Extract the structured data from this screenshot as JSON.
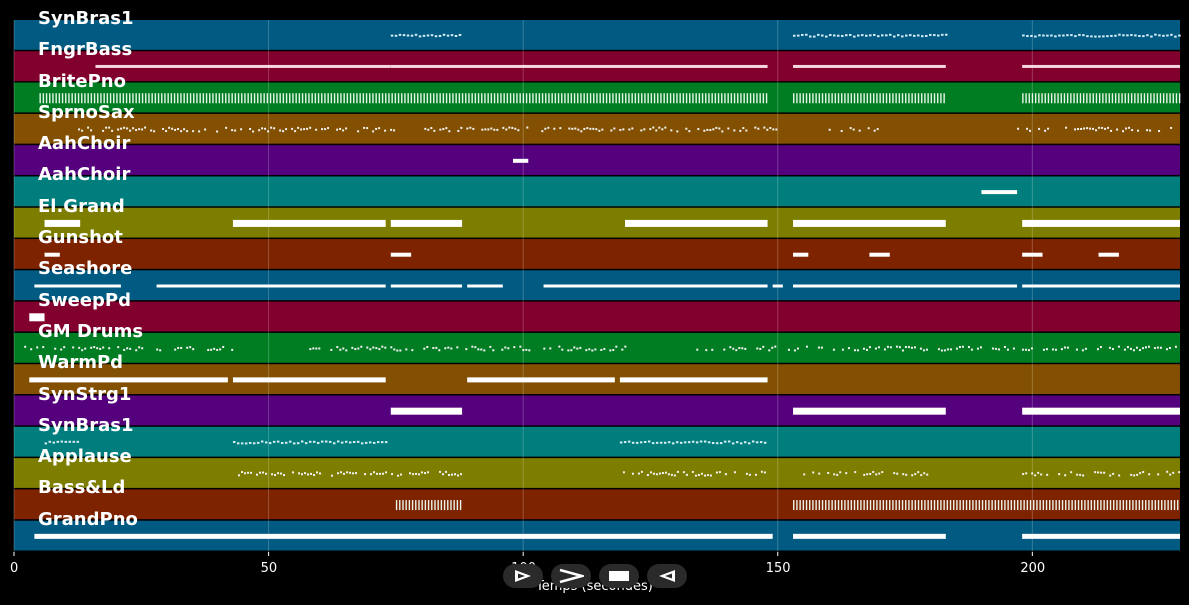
{
  "chart_data": {
    "type": "piano-roll",
    "xlabel": "Temps (secondes)",
    "xlim": [
      0,
      229
    ],
    "xticks": [
      0,
      50,
      100,
      150,
      200
    ],
    "grid": true,
    "tracks": [
      {
        "name": "SynBras1",
        "color": "#005a82",
        "segments": [
          [
            74,
            88
          ],
          [
            153,
            183
          ],
          [
            198,
            229
          ]
        ],
        "note_type": "sparse-thin"
      },
      {
        "name": "FngrBass",
        "color": "#82002d",
        "segments": [
          [
            16,
            74
          ],
          [
            74,
            148
          ],
          [
            153,
            183
          ],
          [
            198,
            229
          ]
        ],
        "note_type": "dense-row"
      },
      {
        "name": "BritePno",
        "color": "#007d23",
        "segments": [
          [
            5,
            148
          ],
          [
            153,
            183
          ],
          [
            198,
            229
          ]
        ],
        "note_type": "vertical-ticks"
      },
      {
        "name": "SprnoSax",
        "color": "#825000",
        "segments": [
          [
            12,
            75
          ],
          [
            80,
            150
          ],
          [
            160,
            170
          ],
          [
            197,
            229
          ]
        ],
        "note_type": "sparse-dots"
      },
      {
        "name": "AahChoir",
        "color": "#55007d",
        "segments": [
          [
            98,
            101
          ]
        ],
        "note_type": "block"
      },
      {
        "name": "AahChoir",
        "color": "#007d7d",
        "segments": [
          [
            190,
            197
          ]
        ],
        "note_type": "block"
      },
      {
        "name": "El.Grand",
        "color": "#7d7d00",
        "segments": [
          [
            6,
            13
          ],
          [
            43,
            73
          ],
          [
            74,
            88
          ],
          [
            120,
            148
          ],
          [
            153,
            183
          ],
          [
            198,
            229
          ]
        ],
        "note_type": "thick-cluster"
      },
      {
        "name": "Gunshot",
        "color": "#7d2300",
        "segments": [
          [
            6,
            9
          ],
          [
            74,
            78
          ],
          [
            153,
            156
          ],
          [
            168,
            172
          ],
          [
            198,
            202
          ],
          [
            213,
            217
          ]
        ],
        "note_type": "block"
      },
      {
        "name": "Seashore",
        "color": "#005a82",
        "segments": [
          [
            4,
            21
          ],
          [
            28,
            73
          ],
          [
            74,
            88
          ],
          [
            89,
            96
          ],
          [
            104,
            148
          ],
          [
            149,
            151
          ],
          [
            153,
            197
          ],
          [
            198,
            229
          ]
        ],
        "note_type": "long-line"
      },
      {
        "name": "SweepPd",
        "color": "#82002d",
        "segments": [
          [
            3,
            6
          ]
        ],
        "note_type": "big-block"
      },
      {
        "name": "GM Drums",
        "color": "#007d23",
        "segments": [
          [
            2,
            43
          ],
          [
            58,
            120
          ],
          [
            134,
            150
          ],
          [
            152,
            229
          ]
        ],
        "note_type": "sparse-dots"
      },
      {
        "name": "WarmPd",
        "color": "#825000",
        "segments": [
          [
            3,
            42
          ],
          [
            43,
            73
          ],
          [
            89,
            118
          ],
          [
            119,
            148
          ]
        ],
        "note_type": "thick-line"
      },
      {
        "name": "SynStrg1",
        "color": "#55007d",
        "segments": [
          [
            74,
            88
          ],
          [
            153,
            183
          ],
          [
            198,
            229
          ]
        ],
        "note_type": "thick-cluster"
      },
      {
        "name": "SynBras1",
        "color": "#007d7d",
        "segments": [
          [
            6,
            13
          ],
          [
            43,
            73
          ],
          [
            119,
            148
          ]
        ],
        "note_type": "sparse-thin"
      },
      {
        "name": "Applause",
        "color": "#7d7d00",
        "segments": [
          [
            44,
            88
          ],
          [
            119,
            148
          ],
          [
            155,
            180
          ],
          [
            198,
            229
          ]
        ],
        "note_type": "sparse-dots"
      },
      {
        "name": "Bass&Ld",
        "color": "#7d2300",
        "segments": [
          [
            75,
            88
          ],
          [
            153,
            229
          ]
        ],
        "note_type": "vertical-ticks"
      },
      {
        "name": "GrandPno",
        "color": "#005a82",
        "segments": [
          [
            4,
            149
          ],
          [
            153,
            183
          ],
          [
            198,
            229
          ]
        ],
        "note_type": "thick-line"
      }
    ]
  },
  "controls": [
    {
      "name": "play-button",
      "icon": "play-outline-icon"
    },
    {
      "name": "forward-button",
      "icon": "chevron-right-icon"
    },
    {
      "name": "stop-button",
      "icon": "stop-icon"
    },
    {
      "name": "rewind-button",
      "icon": "play-reverse-outline-icon"
    }
  ]
}
